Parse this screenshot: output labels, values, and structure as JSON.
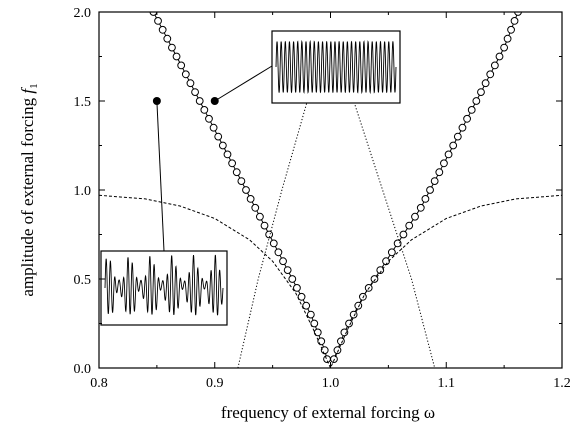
{
  "chart_data": {
    "type": "scatter",
    "title": "",
    "xlabel": "frequency of external forcing ω",
    "ylabel": {
      "main": "amplitude of external forcing ",
      "var": "f",
      "sub": "1"
    },
    "xlim": [
      0.8,
      1.2
    ],
    "ylim": [
      0.0,
      2.0
    ],
    "x_ticks": [
      "0.8",
      "0.9",
      "1.0",
      "1.1",
      "1.2"
    ],
    "y_ticks": [
      "0.0",
      "0.5",
      "1.0",
      "1.5",
      "2.0"
    ],
    "grid": false,
    "legend": "none",
    "series": [
      {
        "style": "line-open-circles",
        "points": [
          [
            0.847,
            2.0
          ],
          [
            0.851,
            1.95
          ],
          [
            0.855,
            1.9
          ],
          [
            0.859,
            1.85
          ],
          [
            0.863,
            1.8
          ],
          [
            0.867,
            1.75
          ],
          [
            0.871,
            1.7
          ],
          [
            0.875,
            1.65
          ],
          [
            0.879,
            1.6
          ],
          [
            0.883,
            1.55
          ],
          [
            0.887,
            1.5
          ],
          [
            0.891,
            1.45
          ],
          [
            0.895,
            1.4
          ],
          [
            0.899,
            1.35
          ],
          [
            0.903,
            1.3
          ],
          [
            0.907,
            1.25
          ],
          [
            0.911,
            1.2
          ],
          [
            0.915,
            1.15
          ],
          [
            0.919,
            1.1
          ],
          [
            0.923,
            1.05
          ],
          [
            0.927,
            1.0
          ],
          [
            0.931,
            0.95
          ],
          [
            0.935,
            0.9
          ],
          [
            0.939,
            0.85
          ],
          [
            0.943,
            0.8
          ],
          [
            0.947,
            0.75
          ],
          [
            0.951,
            0.7
          ],
          [
            0.955,
            0.65
          ],
          [
            0.959,
            0.6
          ],
          [
            0.963,
            0.55
          ],
          [
            0.967,
            0.5
          ],
          [
            0.971,
            0.45
          ],
          [
            0.975,
            0.4
          ],
          [
            0.979,
            0.35
          ],
          [
            0.983,
            0.3
          ],
          [
            0.986,
            0.25
          ],
          [
            0.989,
            0.2
          ],
          [
            0.992,
            0.15
          ],
          [
            0.995,
            0.1
          ],
          [
            0.997,
            0.05
          ],
          [
            1.003,
            0.05
          ],
          [
            1.006,
            0.1
          ],
          [
            1.009,
            0.15
          ],
          [
            1.012,
            0.2
          ],
          [
            1.016,
            0.25
          ],
          [
            1.02,
            0.3
          ],
          [
            1.024,
            0.35
          ],
          [
            1.028,
            0.4
          ],
          [
            1.033,
            0.45
          ],
          [
            1.038,
            0.5
          ],
          [
            1.043,
            0.55
          ],
          [
            1.048,
            0.6
          ],
          [
            1.053,
            0.65
          ],
          [
            1.058,
            0.7
          ],
          [
            1.063,
            0.75
          ],
          [
            1.068,
            0.8
          ],
          [
            1.073,
            0.85
          ],
          [
            1.078,
            0.9
          ],
          [
            1.082,
            0.95
          ],
          [
            1.086,
            1.0
          ],
          [
            1.09,
            1.05
          ],
          [
            1.094,
            1.1
          ],
          [
            1.098,
            1.15
          ],
          [
            1.102,
            1.2
          ],
          [
            1.106,
            1.25
          ],
          [
            1.11,
            1.3
          ],
          [
            1.114,
            1.35
          ],
          [
            1.118,
            1.4
          ],
          [
            1.122,
            1.45
          ],
          [
            1.126,
            1.5
          ],
          [
            1.13,
            1.55
          ],
          [
            1.134,
            1.6
          ],
          [
            1.138,
            1.65
          ],
          [
            1.142,
            1.7
          ],
          [
            1.146,
            1.75
          ],
          [
            1.15,
            1.8
          ],
          [
            1.153,
            1.85
          ],
          [
            1.156,
            1.9
          ],
          [
            1.159,
            1.95
          ],
          [
            1.162,
            2.0
          ]
        ]
      },
      {
        "style": "dotted",
        "points": [
          [
            0.92,
            0.0
          ],
          [
            0.9375,
            0.5
          ],
          [
            0.958,
            1.0
          ],
          [
            0.98,
            1.5
          ],
          [
            1.0,
            1.8
          ],
          [
            1.02,
            1.5
          ],
          [
            1.045,
            1.0
          ],
          [
            1.07,
            0.5
          ],
          [
            1.09,
            0.0
          ]
        ]
      },
      {
        "style": "dashed",
        "points": [
          [
            0.8,
            0.97
          ],
          [
            0.84,
            0.95
          ],
          [
            0.87,
            0.91
          ],
          [
            0.9,
            0.84
          ],
          [
            0.93,
            0.72
          ],
          [
            0.95,
            0.6
          ],
          [
            0.97,
            0.42
          ],
          [
            0.985,
            0.22
          ],
          [
            1.0,
            0.0
          ],
          [
            1.015,
            0.22
          ],
          [
            1.03,
            0.42
          ],
          [
            1.05,
            0.6
          ],
          [
            1.07,
            0.72
          ],
          [
            1.1,
            0.84
          ],
          [
            1.13,
            0.91
          ],
          [
            1.16,
            0.95
          ],
          [
            1.2,
            0.97
          ]
        ]
      }
    ],
    "markers": [
      {
        "x": 0.85,
        "y": 1.5,
        "inset": "irregular"
      },
      {
        "x": 0.9,
        "y": 1.5,
        "inset": "regular"
      }
    ]
  }
}
